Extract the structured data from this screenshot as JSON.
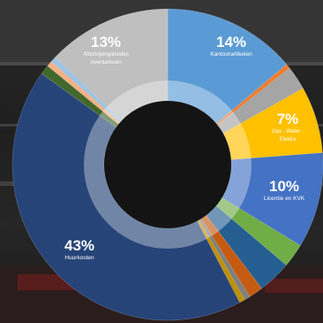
{
  "chart_data": {
    "type": "pie",
    "donut": true,
    "slices": [
      {
        "label": "Kantoorartikelen",
        "value": 14,
        "color": "#5b9bd5"
      },
      {
        "label": "",
        "value": 0.5,
        "color": "#ed7d31"
      },
      {
        "label": "",
        "value": 2.5,
        "color": "#a5a5a5"
      },
      {
        "label": "Gas - Water - Elektra",
        "value": 7,
        "color": "#ffc000"
      },
      {
        "label": "Licentie en KVK",
        "value": 10,
        "color": "#4472c4"
      },
      {
        "label": "",
        "value": 2.5,
        "color": "#70ad47"
      },
      {
        "label": "",
        "value": 3.5,
        "color": "#255e91"
      },
      {
        "label": "",
        "value": 1.5,
        "color": "#c55a11"
      },
      {
        "label": "",
        "value": 0.6,
        "color": "#7f7f7f"
      },
      {
        "label": "",
        "value": 0.6,
        "color": "#bf9000"
      },
      {
        "label": "Huurkosten",
        "value": 43,
        "color": "#264478"
      },
      {
        "label": "",
        "value": 1,
        "color": "#43682b"
      },
      {
        "label": "",
        "value": 0.6,
        "color": "#f4b183"
      },
      {
        "label": "",
        "value": 0.6,
        "color": "#9dc3e6"
      },
      {
        "label": "Afschrijvingskosten inventarissen",
        "value": 13,
        "color": "#bfbfbf"
      }
    ],
    "labels": [
      {
        "pct": "14%",
        "lines": [
          "Kantoorartikelen"
        ]
      },
      {
        "pct": "7%",
        "lines": [
          "Gas - Water -",
          "Elektra"
        ]
      },
      {
        "pct": "10%",
        "lines": [
          "Licentie en KVK"
        ]
      },
      {
        "pct": "43%",
        "lines": [
          "Huurkosten"
        ]
      },
      {
        "pct": "13%",
        "lines": [
          "Afschrijvingskosten",
          "inventarissen"
        ]
      }
    ]
  }
}
